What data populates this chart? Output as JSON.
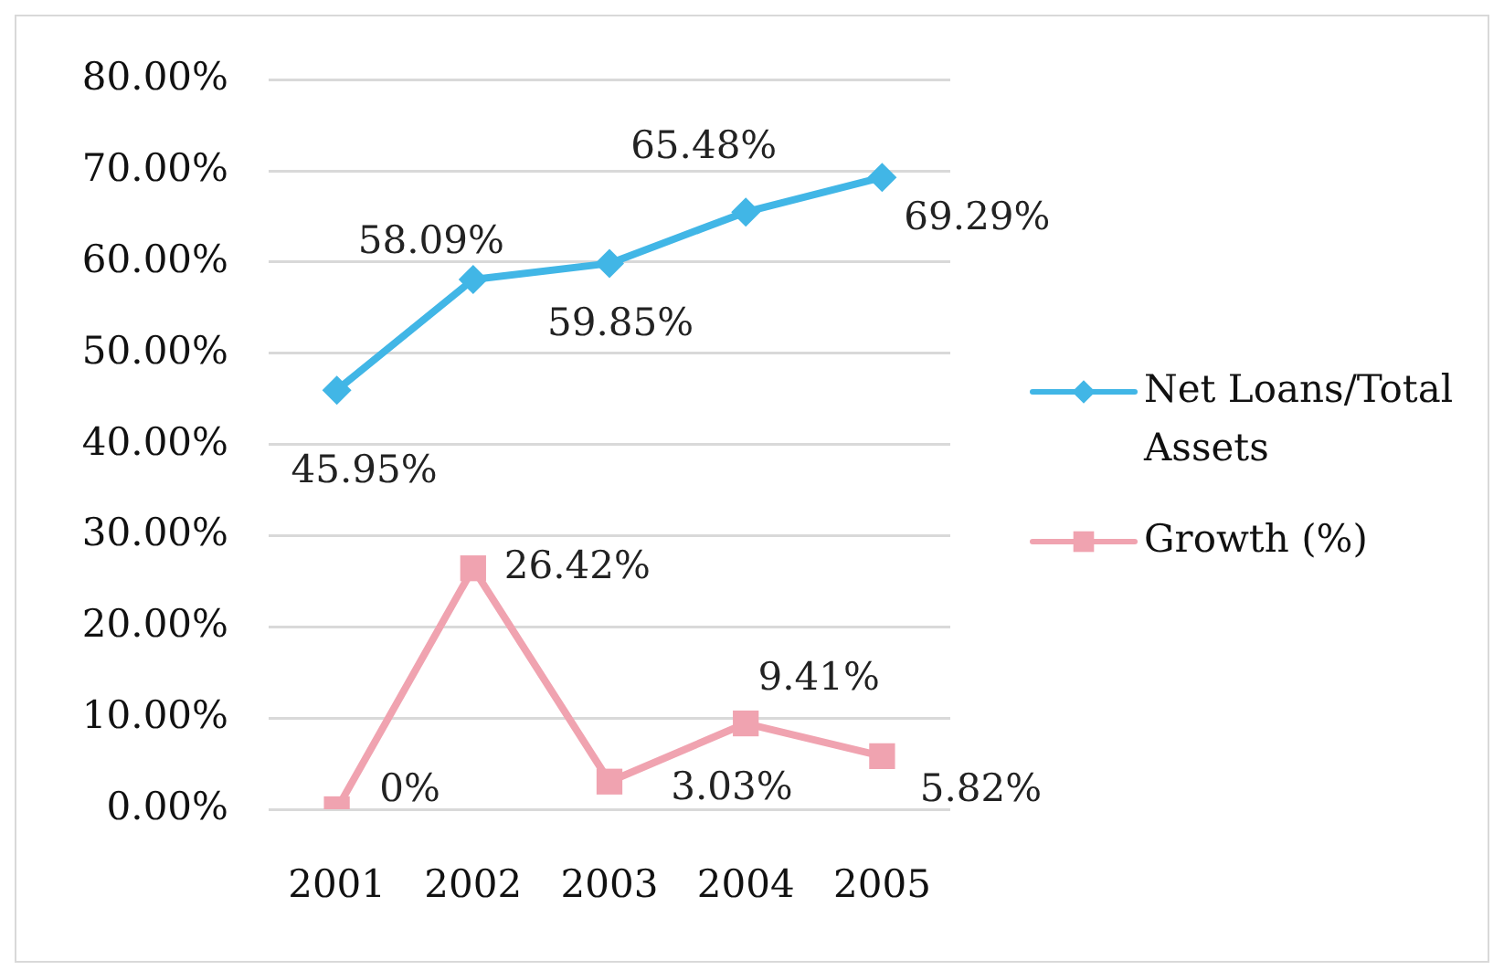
{
  "chart_data": {
    "type": "line",
    "categories": [
      "2001",
      "2002",
      "2003",
      "2004",
      "2005"
    ],
    "series": [
      {
        "name": "Net Loans/Total Assets",
        "color": "#41b6e6",
        "marker": "diamond",
        "values": [
          45.95,
          58.09,
          59.85,
          65.48,
          69.29
        ],
        "value_labels": [
          "45.95%",
          "58.09%",
          "59.85%",
          "65.48%",
          "69.29%"
        ]
      },
      {
        "name": "Growth (%)",
        "color": "#f0a3b0",
        "marker": "square",
        "values": [
          0,
          26.42,
          3.03,
          9.41,
          5.82
        ],
        "value_labels": [
          "0%",
          "26.42%",
          "3.03%",
          "9.41%",
          "5.82%"
        ]
      }
    ],
    "ylim": [
      0,
      80
    ],
    "yticks": [
      {
        "value": 0,
        "label": "0.00%"
      },
      {
        "value": 10,
        "label": "10.00%"
      },
      {
        "value": 20,
        "label": "20.00%"
      },
      {
        "value": 30,
        "label": "30.00%"
      },
      {
        "value": 40,
        "label": "40.00%"
      },
      {
        "value": 50,
        "label": "50.00%"
      },
      {
        "value": 60,
        "label": "60.00%"
      },
      {
        "value": 70,
        "label": "70.00%"
      },
      {
        "value": 80,
        "label": "80.00%"
      }
    ],
    "grid": "y",
    "legend": "right"
  }
}
